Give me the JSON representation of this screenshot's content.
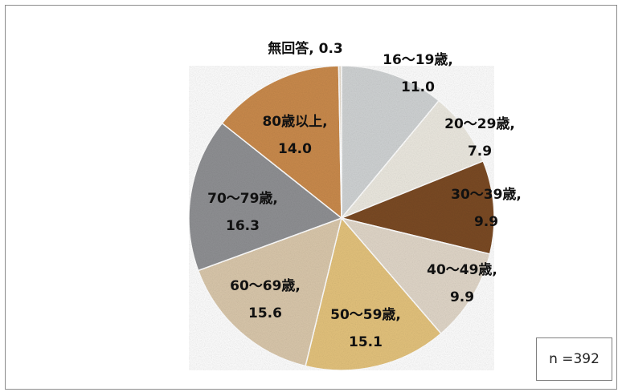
{
  "chart_data": {
    "type": "pie",
    "title": "",
    "start_angle_deg": 0,
    "direction": "clockwise",
    "slices": [
      {
        "label": "16〜19歳,",
        "value_text": "11.0",
        "value": 11.0,
        "color": "#cfd2d3"
      },
      {
        "label": "20〜29歳,",
        "value_text": "7.9",
        "value": 7.9,
        "color": "#ebe8df"
      },
      {
        "label": "30〜39歳,",
        "value_text": "9.9",
        "value": 9.9,
        "color": "#7a4a25"
      },
      {
        "label": "40〜49歳,",
        "value_text": "9.9",
        "value": 9.9,
        "color": "#e0d6c8"
      },
      {
        "label": "50〜59歳,",
        "value_text": "15.1",
        "value": 15.1,
        "color": "#e3c27c"
      },
      {
        "label": "60〜69歳,",
        "value_text": "15.6",
        "value": 15.6,
        "color": "#d9c7ab"
      },
      {
        "label": "70〜79歳,",
        "value_text": "16.3",
        "value": 16.3,
        "color": "#8f9093"
      },
      {
        "label": "80歳以上,",
        "value_text": "14.0",
        "value": 14.0,
        "color": "#c98a4c"
      },
      {
        "label": "無回答, 0.3",
        "value_text": "",
        "value": 0.3,
        "color": "#e6ddd0"
      }
    ]
  },
  "sample_size": "n =392"
}
